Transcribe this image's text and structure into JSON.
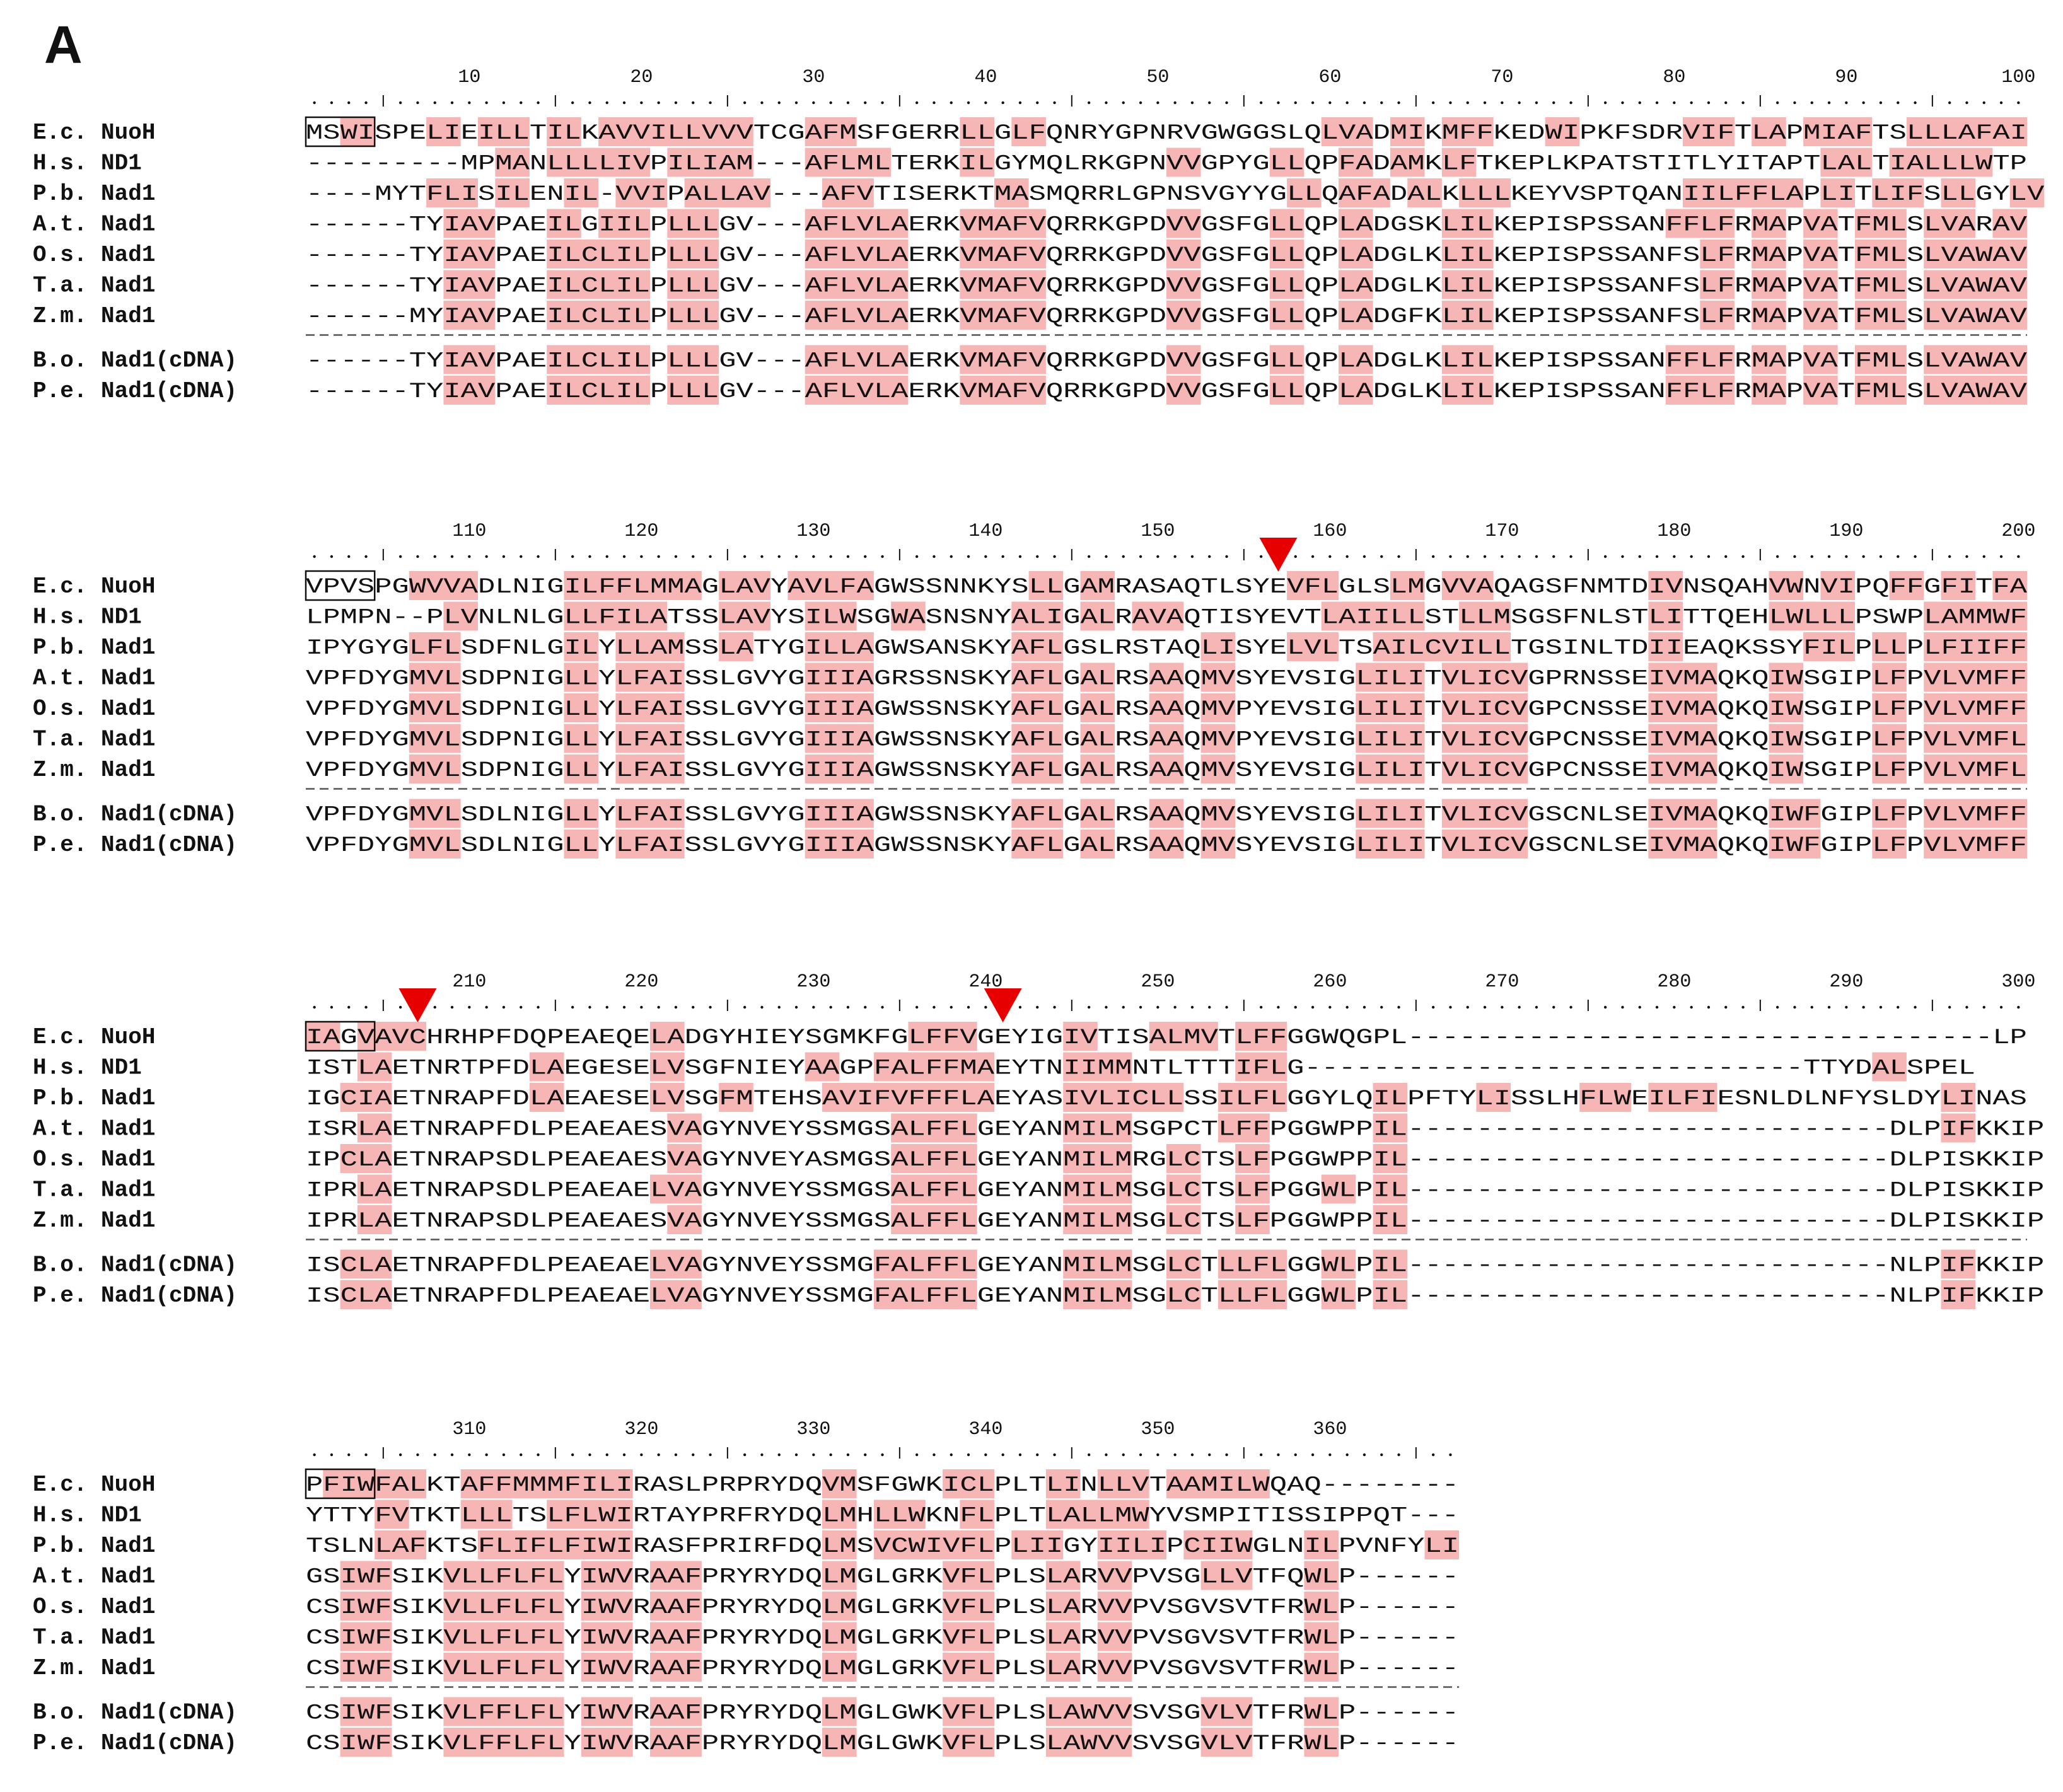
{
  "figure": {
    "panel_label": "A",
    "colors": {
      "highlight_fill": "#f7b6b6",
      "box_stroke": "#111111",
      "arrow_fill": "#e60000",
      "separator": "#555555"
    }
  },
  "blocks": [
    {
      "start": 1,
      "ticks": [
        "10",
        "20",
        "30",
        "40",
        "50",
        "60",
        "70",
        "80",
        "90",
        "100"
      ],
      "arrows": [],
      "groups": [
        [
          {
            "name": "E.c. NuoH",
            "seq": "MSWISPELIEILLTILKAVVILLVVVTCGAFMSFGERRLLGLFQNRYGPNRVGWGGSLQLVADMIKMFFKEDWIPKFSDRVIFTLAPMIAFTSLLLAFAI"
          },
          {
            "name": "H.s. ND1",
            "seq": "---------MPMANLLLLIVPILIAM---AFLMLTERKILGYMQLRKGPNVVGPYGLLQPFADAMKLFTKEPLKPATSTITLYITAPTLALTIALLLWTP"
          },
          {
            "name": "P.b. Nad1",
            "seq": "----MYTFLISILENIL-VVIPALLAV---AFVTISERKTMASMQRRLGPNSVGYYGLLQAFADALKLLLKEYVSPTQANIILFFLAPLITLIFSLLGYLV"
          },
          {
            "name": "A.t. Nad1",
            "seq": "------TYIAVPAEILGIILPLLLGV---AFLVLAERKVMAFVQRRKGPDVVGSFGLLQPLADGSKLILKEPISPSSANFFLFRMAPVATFMLSLVARAV"
          },
          {
            "name": "O.s. Nad1",
            "seq": "------TYIAVPAEILCLILPLLLGV---AFLVLAERKVMAFVQRRKGPDVVGSFGLLQPLADGLKLILKEPISPSSANFSLFRMAPVATFMLSLVAWAV"
          },
          {
            "name": "T.a. Nad1",
            "seq": "------TYIAVPAEILCLILPLLLGV---AFLVLAERKVMAFVQRRKGPDVVGSFGLLQPLADGLKLILKEPISPSSANFSLFRMAPVATFMLSLVAWAV"
          },
          {
            "name": "Z.m. Nad1",
            "seq": "------MYIAVPAEILCLILPLLLGV---AFLVLAERKVMAFVQRRKGPDVVGSFGLLQPLADGFKLILKEPISPSSANFSLFRMAPVATFMLSLVAWAV"
          }
        ],
        [
          {
            "name": "B.o. Nad1(cDNA)",
            "seq": "------TYIAVPAEILCLILPLLLGV---AFLVLAERKVMAFVQRRKGPDVVGSFGLLQPLADGLKLILKEPISPSSANFFLFRMAPVATFMLSLVAWAV"
          },
          {
            "name": "P.e. Nad1(cDNA)",
            "seq": "------TYIAVPAEILCLILPLLLGV---AFLVLAERKVMAFVQRRKGPDVVGSFGLLQPLADGLKLILKEPISPSSANFFLFRMAPVATFMLSLVAWAV"
          }
        ]
      ]
    },
    {
      "start": 101,
      "ticks": [
        "110",
        "120",
        "130",
        "140",
        "150",
        "160",
        "170",
        "180",
        "190",
        "200"
      ],
      "arrows": [
        56
      ],
      "groups": [
        [
          {
            "name": "E.c. NuoH",
            "seq": "VPVSPGWVVADLNIGILFFLMMAGLAVYAVLFAGWSSNNKYSLLGAMRASAQTLSYEVFLGLSLMGVVAQAGSFNMTDIVNSQAHVWNVIPQFFGFITFA"
          },
          {
            "name": "H.s. ND1",
            "seq": "LPMPN--PLVNLNLGLLFILATSSLAVYSILWSGWASNSNYALIGALRAVAQTISYEVTLAIILLSTLLMSGSFNLSTLITTQEHLWLLLPSWPLAMMWF"
          },
          {
            "name": "P.b. Nad1",
            "seq": "IPYGYGLFLSDFNLGILYLLAMSSLATYGILLAGWSANSKYAFLGSLRSTAQLISYELVLTSAILCVILLTGSINLTDIIEAQKSSYFILPLLPLFIIFF"
          },
          {
            "name": "A.t. Nad1",
            "seq": "VPFDYGMVLSDPNIGLLYLFAISSLGVYGIIIAGRSSNSKYAFLGALRSAAQMVSYEVSIGLILITVLICVGPRNSSEIVMAQKQIWSGIPLFPVLVMFF"
          },
          {
            "name": "O.s. Nad1",
            "seq": "VPFDYGMVLSDPNIGLLYLFAISSLGVYGIIIAGWSSNSKYAFLGALRSAAQMVPYEVSIGLILITVLICVGPCNSSEIVMAQKQIWSGIPLFPVLVMFF"
          },
          {
            "name": "T.a. Nad1",
            "seq": "VPFDYGMVLSDPNIGLLYLFAISSLGVYGIIIAGWSSNSKYAFLGALRSAAQMVPYEVSIGLILITVLICVGPCNSSEIVMAQKQIWSGIPLFPVLVMFL"
          },
          {
            "name": "Z.m. Nad1",
            "seq": "VPFDYGMVLSDPNIGLLYLFAISSLGVYGIIIAGWSSNSKYAFLGALRSAAQMVSYEVSIGLILITVLICVGPCNSSEIVMAQKQIWSGIPLFPVLVMFL"
          }
        ],
        [
          {
            "name": "B.o. Nad1(cDNA)",
            "seq": "VPFDYGMVLSDLNIGLLYLFAISSLGVYGIIIAGWSSNSKYAFLGALRSAAQMVSYEVSIGLILITVLICVGSCNLSEIVMAQKQIWFGIPLFPVLVMFF"
          },
          {
            "name": "P.e. Nad1(cDNA)",
            "seq": "VPFDYGMVLSDLNIGLLYLFAISSLGVYGIIIAGWSSNSKYAFLGALRSAAQMVSYEVSIGLILITVLICVGSCNLSEIVMAQKQIWFGIPLFPVLVMFF"
          }
        ]
      ]
    },
    {
      "start": 201,
      "ticks": [
        "210",
        "220",
        "230",
        "240",
        "250",
        "260",
        "270",
        "280",
        "290",
        "300"
      ],
      "arrows": [
        6,
        40
      ],
      "groups": [
        [
          {
            "name": "E.c. NuoH",
            "seq": "IAGVAVCHRHPFDQPEAEQELADGYHIEYSGMKFGLFFVGEYIGIVTISALMVTLFFGGWQGPL----------------------------------LP"
          },
          {
            "name": "H.s. ND1",
            "seq": "ISTLAETNRTPFDLAEGESELVSGFNIEYAAGPFALFFMAEYTNIIMMNTLTTTIFLG-----------------------------TTYDALSPEL"
          },
          {
            "name": "P.b. Nad1",
            "seq": "IGCIAETNRAPFDLAEAESELVSGFMTEHSAVIFVFFFLAEYASIVLICLLSSILFLGGYLQILPFTYLISSLHFLWEILFIESNLDLNFYSLDYLINAS"
          },
          {
            "name": "A.t. Nad1",
            "seq": "ISRLAETNRAPFDLPEAEAESVAGYNVEYSSMGSALFFLGEYANMILMSGPCTLFFPGGWPPIL----------------------------DLPIFKKIP"
          },
          {
            "name": "O.s. Nad1",
            "seq": "IPCLAETNRAPSDLPEAEAESVAGYNVEYASMGSALFFLGEYANMILMRGLCTSLFPGGWPPIL----------------------------DLPISKKIP"
          },
          {
            "name": "T.a. Nad1",
            "seq": "IPRLAETNRAPSDLPEAEAELVAGYNVEYSSMGSALFFLGEYANMILMSGLCTSLFPGGWLPIL----------------------------DLPISKKIP"
          },
          {
            "name": "Z.m. Nad1",
            "seq": "IPRLAETNRAPSDLPEAEAESVAGYNVEYSSMGSALFFLGEYANMILMSGLCTSLFPGGWPPIL----------------------------DLPISKKIP"
          }
        ],
        [
          {
            "name": "B.o. Nad1(cDNA)",
            "seq": "ISCLAETNRAPFDLPEAEAELVAGYNVEYSSMGFALFFLGEYANMILMSGLCTLLFLGGWLPIL----------------------------NLPIFKKIP"
          },
          {
            "name": "P.e. Nad1(cDNA)",
            "seq": "ISCLAETNRAPFDLPEAEAELVAGYNVEYSSMGFALFFLGEYANMILMSGLCTLLFLGGWLPIL----------------------------NLPIFKKIP"
          }
        ]
      ]
    },
    {
      "start": 301,
      "ticks": [
        "310",
        "320",
        "330",
        "340",
        "350",
        "360"
      ],
      "arrows": [],
      "groups": [
        [
          {
            "name": "E.c. NuoH",
            "seq": "PFIWFALKTAFFMMMFILIRASLPRPRYDQVMSFGWKICLPLTLINLLVTAAMILWQAQ--------"
          },
          {
            "name": "H.s. ND1",
            "seq": "YTTYFVTKTLLLTSLFLWIRTAYPRFRYDQLMHLLWKNFLPLTLALLMWYVSMPITISSIPPQT---"
          },
          {
            "name": "P.b. Nad1",
            "seq": "TSLNLAFKTSFLIFLFIWIRASFPRIRFDQLMSVCWIVFLPLIIGYIILIPCIIWGLNILPVNFYLI"
          },
          {
            "name": "A.t. Nad1",
            "seq": "GSIWFSIKVLLFLFLYIWVRAAFPRYRYDQLMGLGRKVFLPLSLARVVPVSGLLVTFQWLP------"
          },
          {
            "name": "O.s. Nad1",
            "seq": "CSIWFSIKVLLFLFLYIWVRAAFPRYRYDQLMGLGRKVFLPLSLARVVPVSGVSVTFRWLP------"
          },
          {
            "name": "T.a. Nad1",
            "seq": "CSIWFSIKVLLFLFLYIWVRAAFPRYRYDQLMGLGRKVFLPLSLARVVPVSGVSVTFRWLP------"
          },
          {
            "name": "Z.m. Nad1",
            "seq": "CSIWFSIKVLLFLFLYIWVRAAFPRYRYDQLMGLGRKVFLPLSLARVVPVSGVSVTFRWLP------"
          }
        ],
        [
          {
            "name": "B.o. Nad1(cDNA)",
            "seq": "CSIWFSIKVLFFLFLYIWVRAAFPRYRYDQLMGLGWKVFLPLSLAWVVSVSGVLVTFRWLP------"
          },
          {
            "name": "P.e. Nad1(cDNA)",
            "seq": "CSIWFSIKVLFFLFLYIWVRAAFPRYRYDQLMGLGWKVFLPLSLAWVVSVSGVLVTFRWLP------"
          }
        ]
      ]
    }
  ]
}
